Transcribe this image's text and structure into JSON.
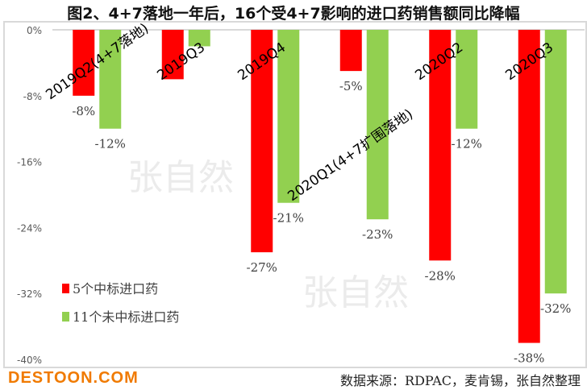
{
  "chart_data": {
    "type": "bar",
    "title": "图2、4+7落地一年后，16个受4+7影响的进口药销售额同比降幅",
    "categories": [
      "2019Q2(4+7落地)",
      "2019Q3",
      "2019Q4",
      "2020Q1(4+7扩围落地)",
      "2020Q2",
      "2020Q3"
    ],
    "series": [
      {
        "name": "5个中标进口药",
        "color": "#ff0000",
        "values": [
          -8,
          -6,
          -27,
          -5,
          -28,
          -38
        ],
        "labels": [
          "-8%",
          "",
          "-27%",
          "-5%",
          "-28%",
          "-38%"
        ]
      },
      {
        "name": "11个未中标进口药",
        "color": "#92d050",
        "values": [
          -12,
          -2,
          -21,
          -23,
          -12,
          -32
        ],
        "labels": [
          "-12%",
          "",
          "-21%",
          "-23%",
          "-12%",
          "-32%"
        ]
      }
    ],
    "ylim": [
      -40,
      0
    ],
    "yticks": [
      "0%",
      "-8%",
      "-16%",
      "-24%",
      "-32%",
      "-40%"
    ],
    "legend": "bottom-left",
    "grid": false
  },
  "source": "数据来源：RDPAC，麦肯锡，张自然整理",
  "watermark": "张自然",
  "logo": "DESTOON.COM"
}
